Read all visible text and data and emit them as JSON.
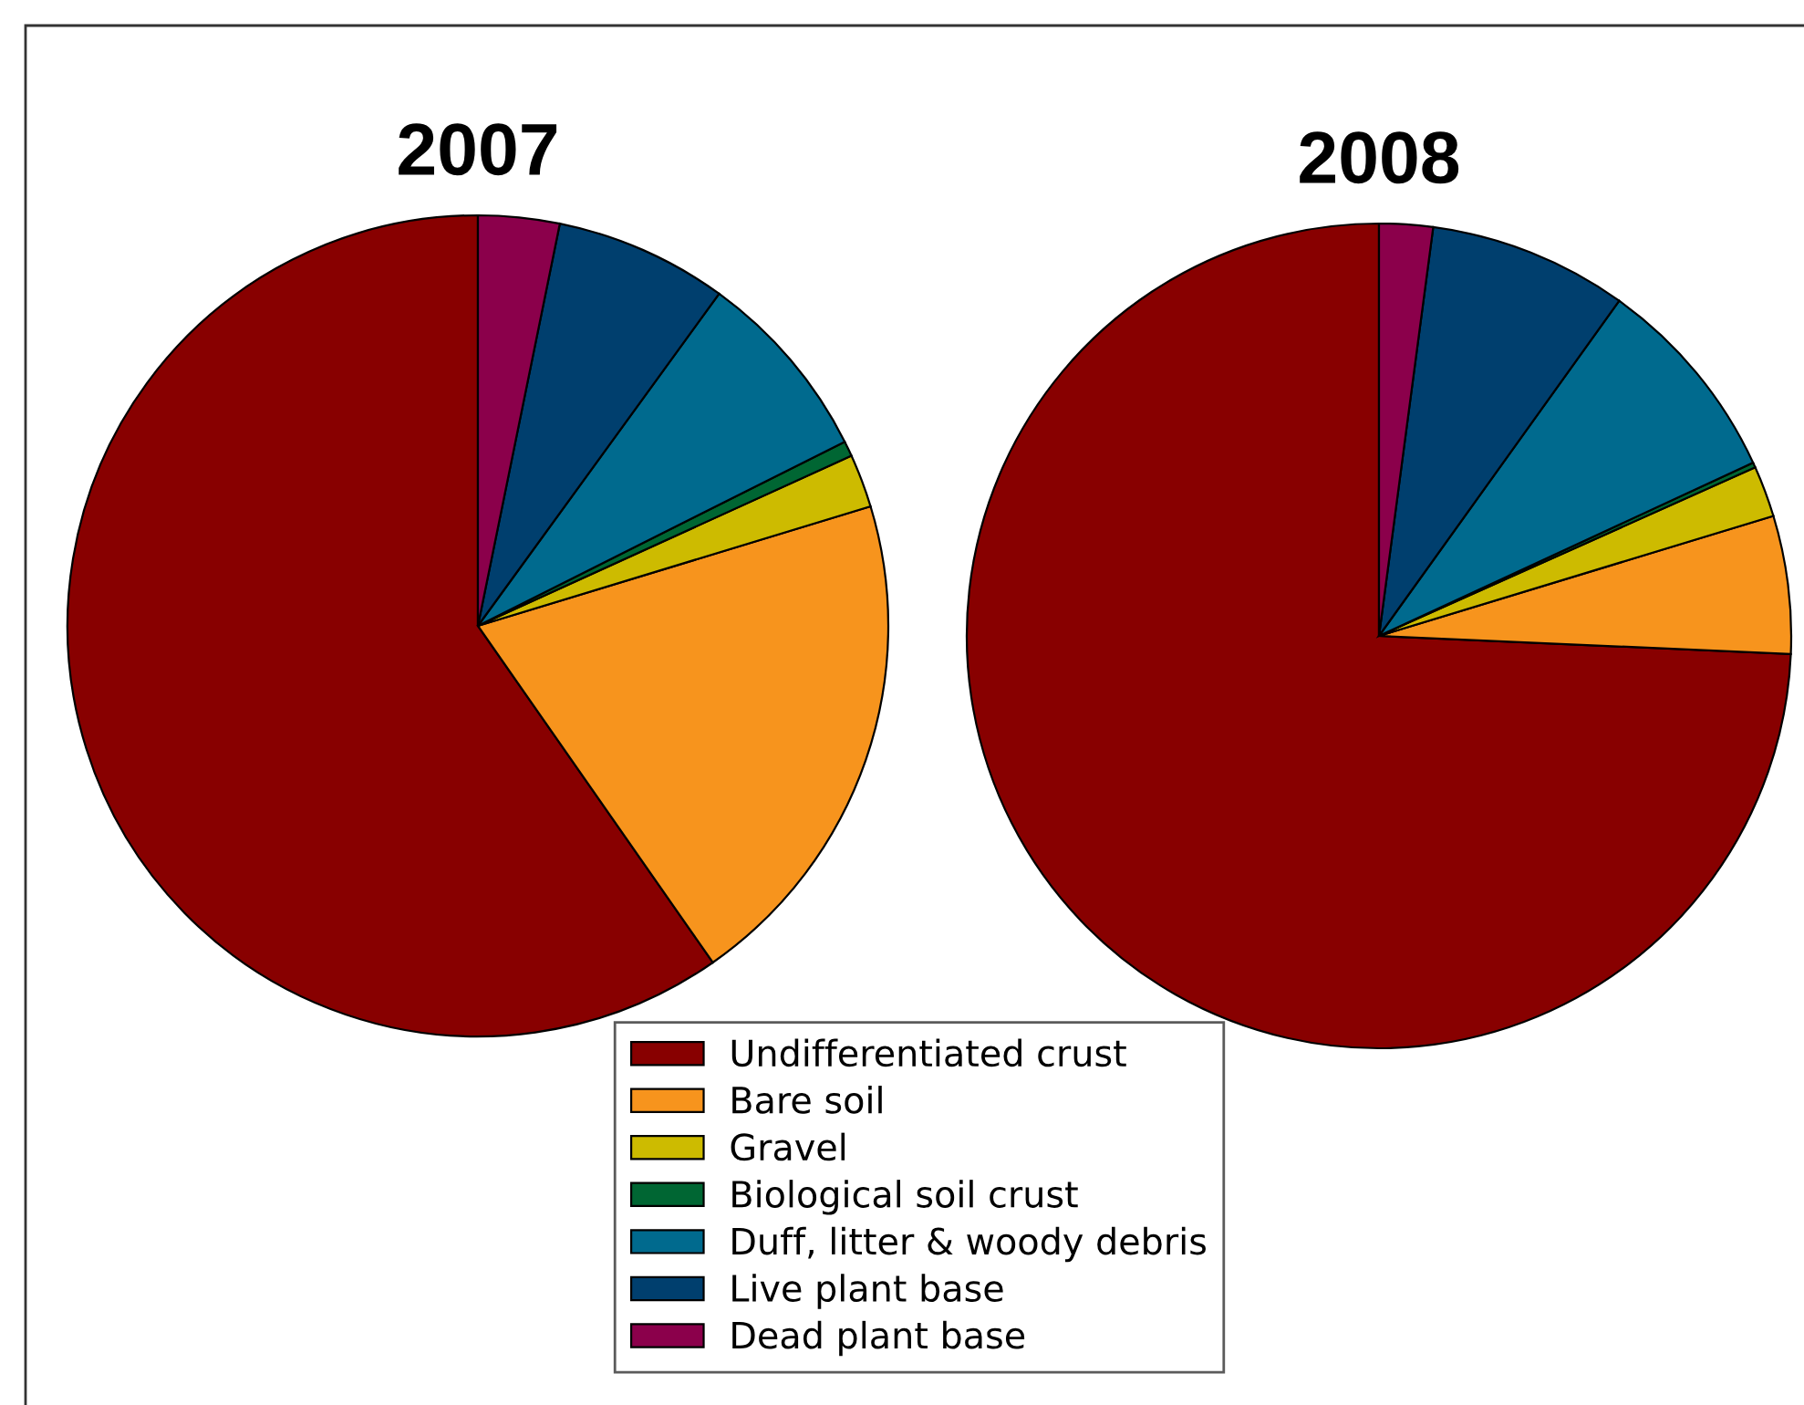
{
  "chart_data": [
    {
      "type": "pie",
      "title": "2007",
      "categories": [
        "Undifferentiated crust",
        "Bare soil",
        "Gravel",
        "Biological soil crust",
        "Duff, litter & woody debris",
        "Live plant base",
        "Dead plant base"
      ],
      "values": [
        59.7,
        20.0,
        2.1,
        0.6,
        7.6,
        6.8,
        3.2
      ],
      "colors": [
        "#880000",
        "#f7941d",
        "#cdbb00",
        "#006633",
        "#006a8e",
        "#003f6e",
        "#8b004b"
      ],
      "legend": "bottom"
    },
    {
      "type": "pie",
      "title": "2008",
      "categories": [
        null,
        null,
        null,
        null,
        null,
        null,
        null
      ],
      "values": [
        74.3,
        5.4,
        2.0,
        0.2,
        8.2,
        7.8,
        2.1
      ],
      "colors": [
        "#880000",
        "#f7941d",
        "#cdbb00",
        "#006633",
        "#006a8e",
        "#003f6e",
        "#8b004b"
      ]
    }
  ]
}
